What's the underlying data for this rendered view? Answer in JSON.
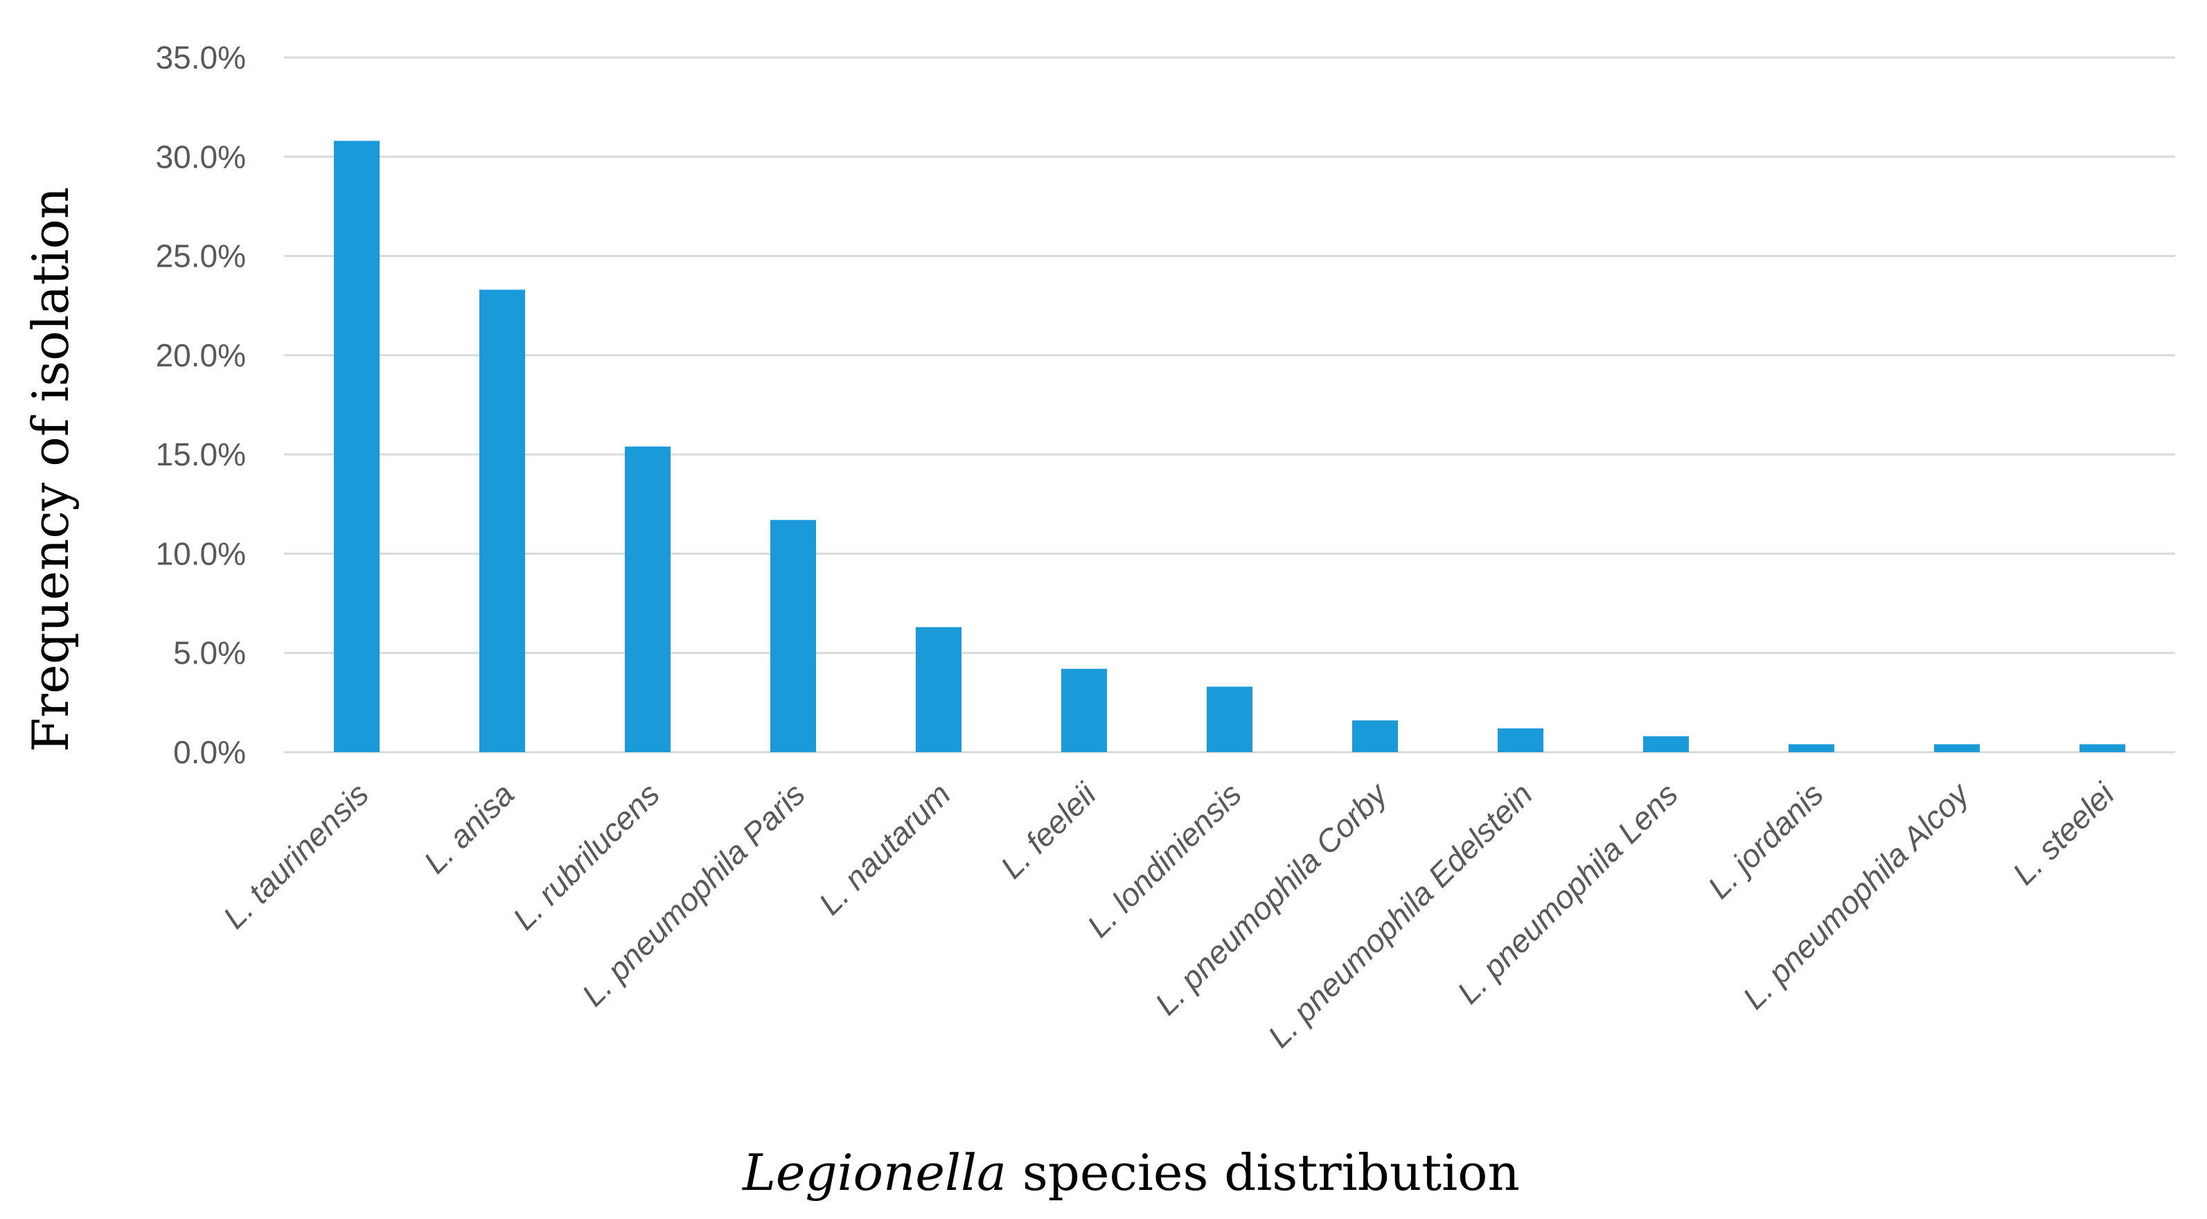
{
  "chart_data": {
    "type": "bar",
    "title": "",
    "xlabel_italic": "Legionella",
    "xlabel_rest": " species distribution",
    "ylabel": "Frequency of isolation",
    "ylim": [
      0,
      35
    ],
    "yticks": [
      "0.0%",
      "5.0%",
      "10.0%",
      "15.0%",
      "20.0%",
      "25.0%",
      "30.0%",
      "35.0%"
    ],
    "grid": true,
    "legend": "none",
    "bar_color": "#1a9ad9",
    "categories": [
      "L. taurinensis",
      "L. anisa",
      "L. rubrilucens",
      "L. pneumophila Paris",
      "L. nautarum",
      "L. feeleii",
      "L. londiniensis",
      "L. pneumophila Corby",
      "L. pneumophila Edelstein",
      "L. pneumophila Lens",
      "L. jordanis",
      "L. pneumophila Alcoy",
      "L. steelei"
    ],
    "values": [
      30.8,
      23.3,
      15.4,
      11.7,
      6.3,
      4.2,
      3.3,
      1.6,
      1.2,
      0.8,
      0.4,
      0.4,
      0.4
    ]
  }
}
